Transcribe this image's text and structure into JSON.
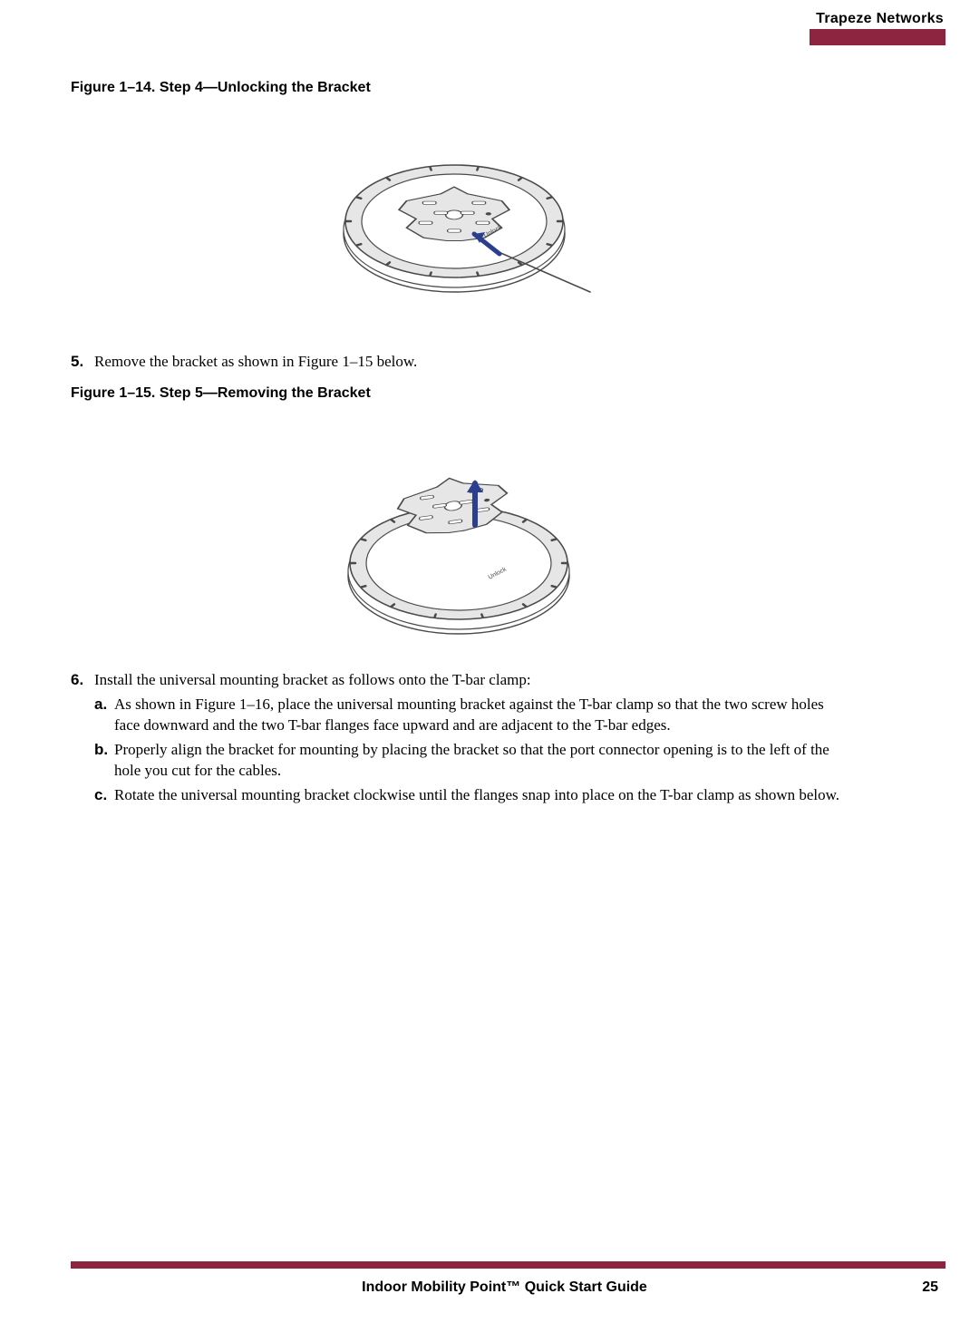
{
  "colors": {
    "accent": "#8e2540",
    "text": "#000000",
    "bg": "#ffffff",
    "arrow": "#2c3e8f",
    "diagram_stroke": "#4a4a4a",
    "diagram_fill": "#ffffff",
    "diagram_light": "#e6e6e6"
  },
  "header": {
    "company": "Trapeze Networks"
  },
  "figure1": {
    "caption": "Figure 1–14.  Step 4—Unlocking the Bracket",
    "label_on_device": "Unlock"
  },
  "step5": {
    "number": "5.",
    "text": "Remove the bracket as shown in Figure 1–15 below."
  },
  "figure2": {
    "caption": "Figure 1–15.  Step 5—Removing the Bracket",
    "label_on_device": "Unlock"
  },
  "step6": {
    "number": "6.",
    "text": "Install the universal mounting bracket as follows onto the T-bar clamp:",
    "subs": [
      {
        "letter": "a.",
        "text": "As shown in Figure 1–16, place the universal mounting bracket against the T-bar clamp so that the two screw holes face downward and the two T-bar flanges face upward and are adjacent to the T-bar edges."
      },
      {
        "letter": "b.",
        "text": "Properly align the bracket for mounting by placing the bracket so that the port connector opening is to the left of the hole you cut for the cables."
      },
      {
        "letter": "c.",
        "text": "Rotate the universal mounting bracket clockwise until the flanges snap into place on the T-bar clamp as shown below."
      }
    ]
  },
  "footer": {
    "title": "Indoor Mobility Point™ Quick Start Guide",
    "page": "25"
  }
}
